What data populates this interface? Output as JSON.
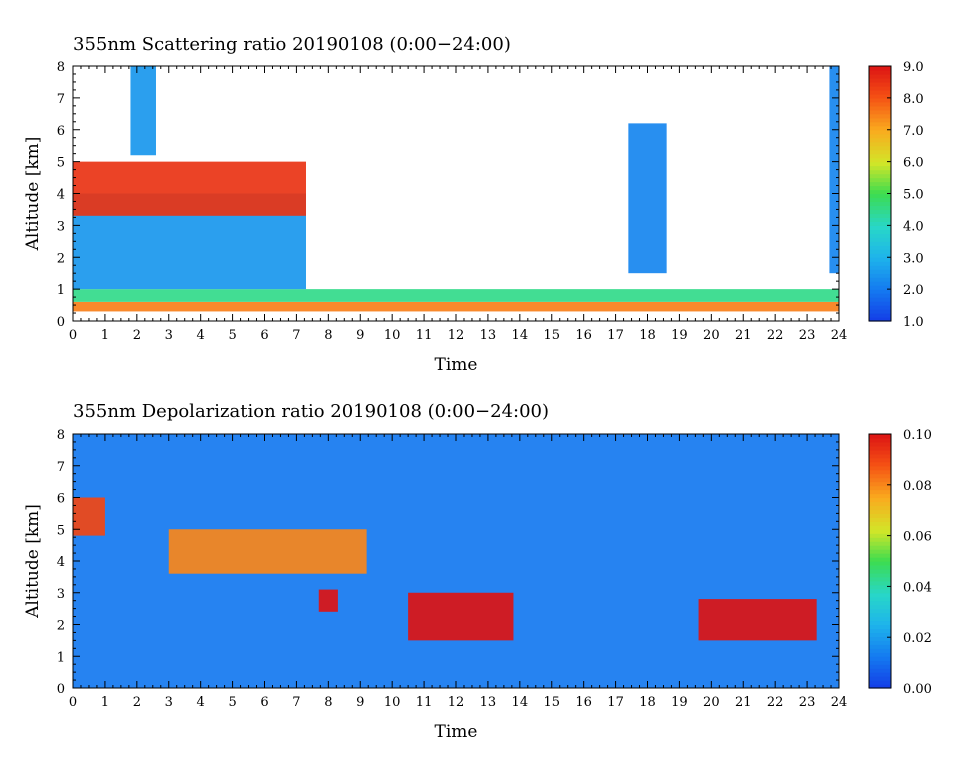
{
  "chart_data": [
    {
      "type": "heatmap",
      "title": "355nm Scattering ratio  20190108 (0:00−24:00)",
      "xlabel": "Time",
      "ylabel": "Altitude [km]",
      "xlim": [
        0,
        24
      ],
      "ylim": [
        0,
        8
      ],
      "x_ticks": [
        0,
        1,
        2,
        3,
        4,
        5,
        6,
        7,
        8,
        9,
        10,
        11,
        12,
        13,
        14,
        15,
        16,
        17,
        18,
        19,
        20,
        21,
        22,
        23,
        24
      ],
      "y_ticks": [
        0,
        1,
        2,
        3,
        4,
        5,
        6,
        7,
        8
      ],
      "colorbar": {
        "min": 1.0,
        "max": 9.0,
        "ticks": [
          "1.0",
          "2.0",
          "3.0",
          "4.0",
          "5.0",
          "6.0",
          "7.0",
          "8.0",
          "9.0"
        ]
      },
      "features": [
        {
          "x_range": [
            0,
            24
          ],
          "y_range": [
            0.3,
            0.6
          ],
          "value": 7.5
        },
        {
          "x_range": [
            0,
            24
          ],
          "y_range": [
            0.6,
            1.0
          ],
          "value": 4.5
        },
        {
          "x_range": [
            0,
            7.3
          ],
          "y_range": [
            1.0,
            4.0
          ],
          "value": 2.5
        },
        {
          "x_range": [
            0,
            7.3
          ],
          "y_range": [
            3.3,
            5.0
          ],
          "value": 8.5
        },
        {
          "x_range": [
            1.8,
            2.6
          ],
          "y_range": [
            5.2,
            8.0
          ],
          "value": 2.5
        },
        {
          "x_range": [
            17.4,
            18.6
          ],
          "y_range": [
            1.5,
            6.2
          ],
          "value": 2.2
        },
        {
          "x_range": [
            23.7,
            24.0
          ],
          "y_range": [
            1.5,
            8.0
          ],
          "value": 2.2
        }
      ]
    },
    {
      "type": "heatmap",
      "title": "355nm Depolarization ratio  20190108 (0:00−24:00)",
      "xlabel": "Time",
      "ylabel": "Altitude [km]",
      "xlim": [
        0,
        24
      ],
      "ylim": [
        0,
        8
      ],
      "x_ticks": [
        0,
        1,
        2,
        3,
        4,
        5,
        6,
        7,
        8,
        9,
        10,
        11,
        12,
        13,
        14,
        15,
        16,
        17,
        18,
        19,
        20,
        21,
        22,
        23,
        24
      ],
      "y_ticks": [
        0,
        1,
        2,
        3,
        4,
        5,
        6,
        7,
        8
      ],
      "colorbar": {
        "min": 0.0,
        "max": 0.1,
        "ticks": [
          "0.00",
          "0.02",
          "0.04",
          "0.06",
          "0.08",
          "0.10"
        ]
      },
      "features": [
        {
          "x_range": [
            0,
            24
          ],
          "y_range": [
            0,
            8
          ],
          "value": 0.012
        },
        {
          "x_range": [
            10.5,
            13.8
          ],
          "y_range": [
            1.5,
            3.0
          ],
          "value": 0.1
        },
        {
          "x_range": [
            19.6,
            23.3
          ],
          "y_range": [
            1.5,
            2.8
          ],
          "value": 0.1
        },
        {
          "x_range": [
            7.7,
            8.3
          ],
          "y_range": [
            2.4,
            3.1
          ],
          "value": 0.1
        },
        {
          "x_range": [
            0,
            1.0
          ],
          "y_range": [
            4.8,
            6.0
          ],
          "value": 0.09
        },
        {
          "x_range": [
            3.0,
            9.2
          ],
          "y_range": [
            3.6,
            5.0
          ],
          "value": 0.08
        }
      ]
    }
  ]
}
